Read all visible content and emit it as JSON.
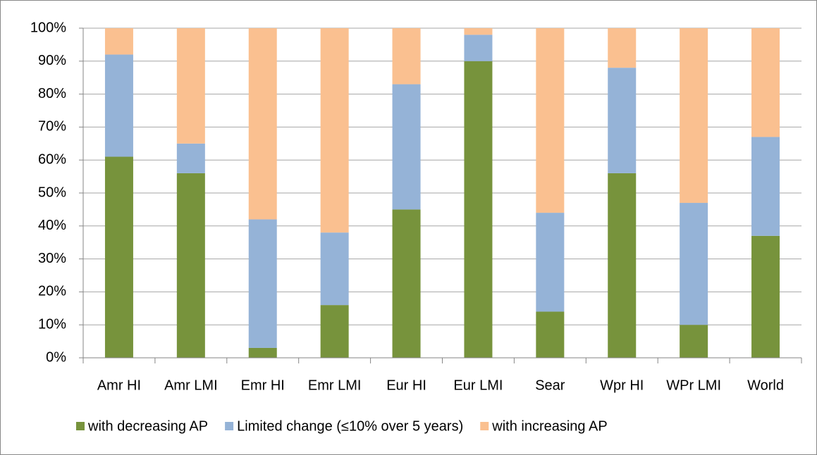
{
  "chart_data": {
    "type": "stacked_bar",
    "categories": [
      "Amr HI",
      "Amr LMI",
      "Emr HI",
      "Emr LMI",
      "Eur HI",
      "Eur LMI",
      "Sear",
      "Wpr HI",
      "WPr LMI",
      "World"
    ],
    "series": [
      {
        "name": "with decreasing AP",
        "color": "#77933c",
        "values": [
          61,
          56,
          3,
          16,
          45,
          90,
          14,
          56,
          10,
          37
        ]
      },
      {
        "name": "Limited change (≤10% over 5 years)",
        "color": "#95b3d7",
        "values": [
          31,
          9,
          39,
          22,
          38,
          8,
          30,
          32,
          37,
          30
        ]
      },
      {
        "name": "with increasing AP",
        "color": "#fac090",
        "values": [
          8,
          35,
          58,
          62,
          17,
          2,
          56,
          12,
          53,
          33
        ]
      }
    ],
    "ylim": [
      0,
      100
    ],
    "yticks": [
      {
        "value": 0,
        "label": "0%"
      },
      {
        "value": 10,
        "label": "10%"
      },
      {
        "value": 20,
        "label": "20%"
      },
      {
        "value": 30,
        "label": "30%"
      },
      {
        "value": 40,
        "label": "40%"
      },
      {
        "value": 50,
        "label": "50%"
      },
      {
        "value": 60,
        "label": "60%"
      },
      {
        "value": 70,
        "label": "70%"
      },
      {
        "value": 80,
        "label": "80%"
      },
      {
        "value": 90,
        "label": "90%"
      },
      {
        "value": 100,
        "label": "100%"
      }
    ],
    "grid": true,
    "legend": "bottom"
  }
}
